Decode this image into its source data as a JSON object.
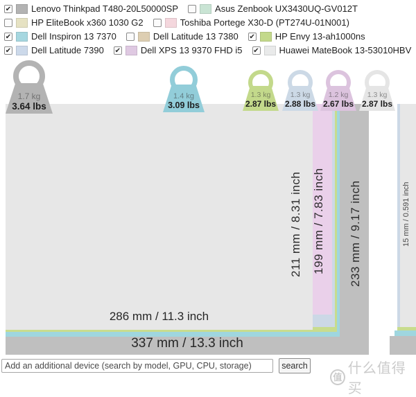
{
  "legend": {
    "rows": [
      {
        "items": [
          {
            "label": "Lenovo Thinkpad T480-20L50000SP",
            "color": "#b3b3b3",
            "check": "✔"
          },
          {
            "label": "Asus Zenbook UX3430UQ-GV012T",
            "color": "#c9e4d4",
            "check": ""
          }
        ]
      },
      {
        "items": [
          {
            "label": "HP EliteBook x360 1030 G2",
            "color": "#e6e2c3",
            "check": ""
          },
          {
            "label": "Toshiba Portege X30-D (PT274U-01N001)",
            "color": "#f4d7dd",
            "check": ""
          }
        ]
      },
      {
        "items": [
          {
            "label": "Dell Inspiron 13 7370",
            "color": "#a6d7e0",
            "check": "✔"
          },
          {
            "label": "Dell Latitude 13 7380",
            "color": "#ddceb2",
            "check": ""
          },
          {
            "label": "HP Envy 13-ah1000ns",
            "color": "#c3d98b",
            "check": "✔"
          }
        ]
      },
      {
        "items": [
          {
            "label": "Dell Latitude 7390",
            "color": "#ccd9ea",
            "check": "✔"
          },
          {
            "label": "Dell XPS 13 9370 FHD i5",
            "color": "#dfc9e2",
            "check": "✔"
          },
          {
            "label": "Huawei MateBook 13-53010HBV",
            "color": "#e9eaea",
            "check": "✔"
          }
        ]
      }
    ]
  },
  "weights": [
    {
      "kg": "1.7 kg",
      "lbs": "3.64 lbs",
      "color": "#b3b3b3"
    },
    {
      "kg": "1.4 kg",
      "lbs": "3.09 lbs",
      "color": "#92cdd9"
    },
    {
      "kg": "1.3 kg",
      "lbs": "2.87 lbs",
      "color": "#c3d98b"
    },
    {
      "kg": "1.3 kg",
      "lbs": "2.88 lbs",
      "color": "#ccd9e6"
    },
    {
      "kg": "1.2 kg",
      "lbs": "2.67 lbs",
      "color": "#dcc3de"
    },
    {
      "kg": "1.3 kg",
      "lbs": "2.87 lbs",
      "color": "#e5e5e5"
    }
  ],
  "chart": {
    "colors": {
      "thinkpad": "#bfbfbf",
      "inspiron": "#9fd6df",
      "envy": "#c8dc8e",
      "latitude7390": "#ccd8e6",
      "xps": "#ead0ea",
      "huawei": "#e7e7e7"
    },
    "labels": {
      "huawei_height": "211 mm / 8.31 inch",
      "xps_height": "199 mm / 7.83 inch",
      "thinkpad_height": "233 mm / 9.17 inch",
      "huawei_width": "286 mm / 11.3 inch",
      "thinkpad_width": "337 mm / 13.3 inch",
      "huawei_thickness": "15 mm / 0.591 inch"
    }
  },
  "footer": {
    "search_placeholder": "Add an additional device (search by model, GPU, CPU, storage)",
    "search_button": "search",
    "watermark_logo": "值",
    "watermark_text": "什么值得买"
  }
}
